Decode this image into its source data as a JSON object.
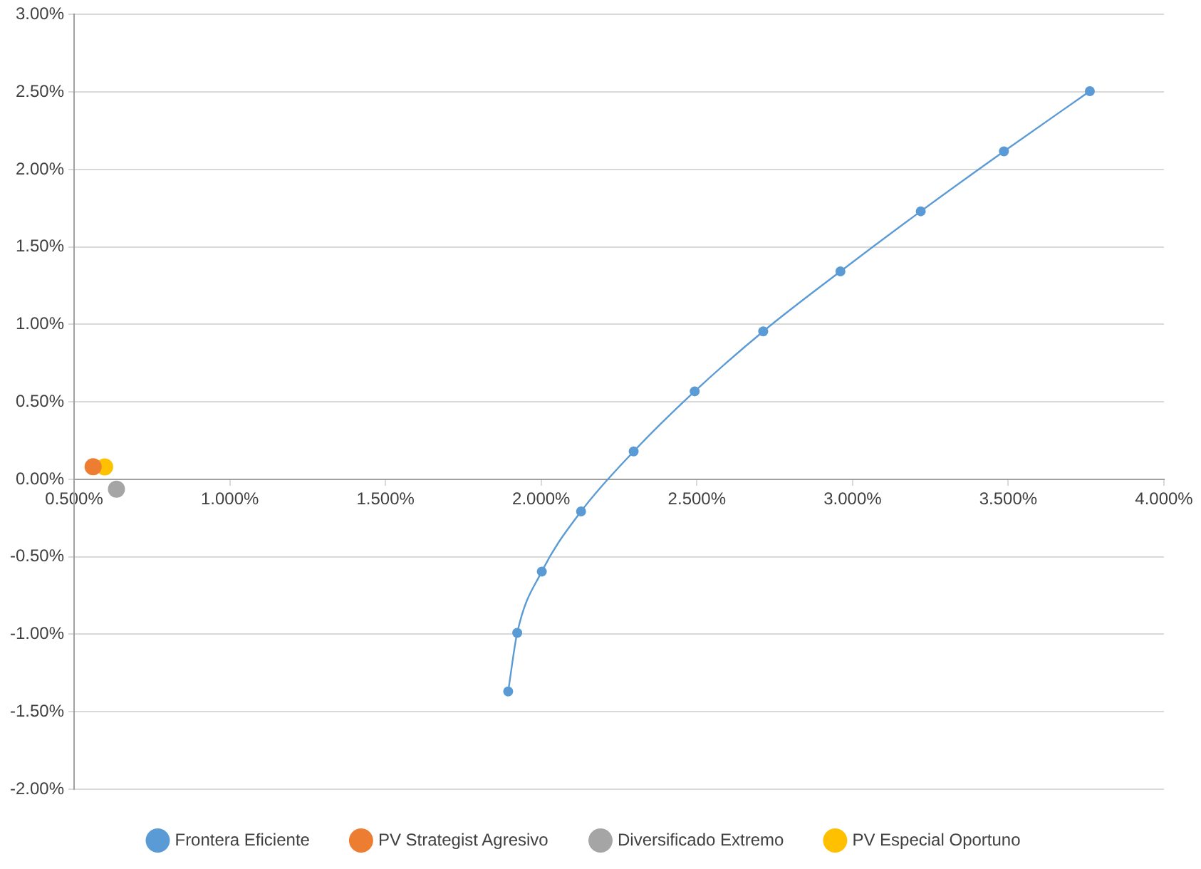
{
  "chart_data": {
    "type": "scatter",
    "xlim": [
      0.5,
      4.0
    ],
    "ylim": [
      -2.0,
      3.0
    ],
    "xticks": [
      {
        "value": 0.5,
        "label": "0.500%"
      },
      {
        "value": 1.0,
        "label": "1.000%"
      },
      {
        "value": 1.5,
        "label": "1.500%"
      },
      {
        "value": 2.0,
        "label": "2.000%"
      },
      {
        "value": 2.5,
        "label": "2.500%"
      },
      {
        "value": 3.0,
        "label": "3.000%"
      },
      {
        "value": 3.5,
        "label": "3.500%"
      },
      {
        "value": 4.0,
        "label": "4.000%"
      }
    ],
    "yticks": [
      {
        "value": -2.0,
        "label": "-2.00%"
      },
      {
        "value": -1.5,
        "label": "-1.50%"
      },
      {
        "value": -1.0,
        "label": "-1.00%"
      },
      {
        "value": -0.5,
        "label": "-0.50%"
      },
      {
        "value": 0,
        "label": "0.00%"
      },
      {
        "value": 0.5,
        "label": "0.50%"
      },
      {
        "value": 1.0,
        "label": "1.00%"
      },
      {
        "value": 1.5,
        "label": "1.50%"
      },
      {
        "value": 2.0,
        "label": "2.00%"
      },
      {
        "value": 2.5,
        "label": "2.50%"
      },
      {
        "value": 3.0,
        "label": "3.00%"
      }
    ],
    "grid": "y",
    "legend": "bottom",
    "marker": "circle",
    "series": [
      {
        "name": "Frontera Eficiente",
        "type": "line",
        "color": "#5b9bd5",
        "x": [
          1.894,
          1.923,
          2.002,
          2.128,
          2.297,
          2.493,
          2.713,
          2.961,
          3.219,
          3.486,
          3.762
        ],
        "values": [
          -1.369,
          -0.991,
          -0.595,
          -0.207,
          0.18,
          0.568,
          0.955,
          1.342,
          1.73,
          2.117,
          2.505
        ]
      },
      {
        "name": "PV Strategist Agresivo",
        "color": "#ed7d31",
        "x": [
          0.561
        ],
        "values": [
          0.081
        ]
      },
      {
        "name": "Diversificado Extremo",
        "color": "#a5a5a5",
        "x": [
          0.636
        ],
        "values": [
          -0.063
        ]
      },
      {
        "name": "PV Especial Oportuno",
        "color": "#ffc000",
        "x": [
          0.598
        ],
        "values": [
          0.08
        ]
      }
    ]
  }
}
